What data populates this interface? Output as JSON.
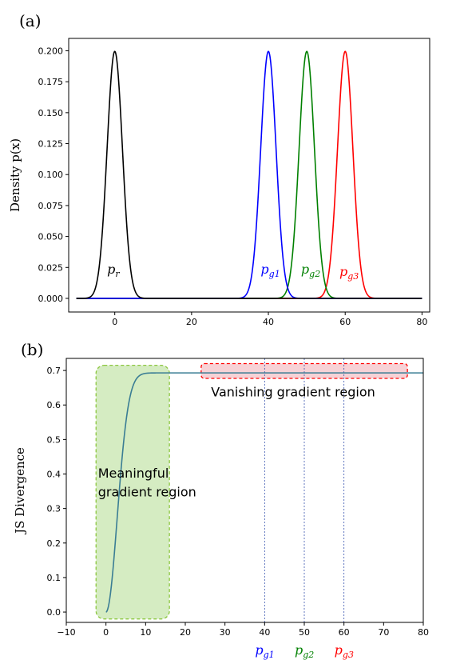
{
  "chart_data": [
    {
      "type": "line",
      "panel_label": "(a)",
      "ylabel": "Density p(x)",
      "xlim": [
        -12,
        82
      ],
      "ylim": [
        -0.011,
        0.21
      ],
      "xticks": [
        0,
        20,
        40,
        60,
        80
      ],
      "yticks": [
        0.0,
        0.025,
        0.05,
        0.075,
        0.1,
        0.125,
        0.15,
        0.175,
        0.2
      ],
      "ytick_labels": [
        "0.000",
        "0.025",
        "0.050",
        "0.075",
        "0.100",
        "0.125",
        "0.150",
        "0.175",
        "0.200"
      ],
      "grid": false,
      "x_range": [
        -10,
        80
      ],
      "sigma": 2,
      "series": [
        {
          "label": "p",
          "sub": "r",
          "color": "#000000",
          "mean": 0,
          "label_x": -2,
          "label_y": 0.02
        },
        {
          "label": "p",
          "sub": "g1",
          "color": "#0000ff",
          "mean": 40,
          "label_x": 38,
          "label_y": 0.02
        },
        {
          "label": "p",
          "sub": "g2",
          "color": "#008000",
          "mean": 50,
          "label_x": 48.5,
          "label_y": 0.02
        },
        {
          "label": "p",
          "sub": "g3",
          "color": "#ff0000",
          "mean": 60,
          "label_x": 58.5,
          "label_y": 0.018
        }
      ]
    },
    {
      "type": "line",
      "panel_label": "(b)",
      "ylabel": "JS Divergence",
      "xlim": [
        -10,
        80
      ],
      "ylim": [
        -0.03,
        0.735
      ],
      "xticks": [
        -10,
        0,
        10,
        20,
        30,
        40,
        50,
        60,
        70,
        80
      ],
      "xtick_labels": [
        "−10",
        "0",
        "10",
        "20",
        "30",
        "40",
        "50",
        "60",
        "70",
        "80"
      ],
      "yticks": [
        0.0,
        0.1,
        0.2,
        0.3,
        0.4,
        0.5,
        0.6,
        0.7
      ],
      "ytick_labels": [
        "0.0",
        "0.1",
        "0.2",
        "0.3",
        "0.4",
        "0.5",
        "0.6",
        "0.7"
      ],
      "grid": false,
      "curve_color": "#3a7d94",
      "curve_max": 0.693,
      "curve_x_range": [
        0,
        80
      ],
      "vlines": [
        {
          "x": 40,
          "label": "p",
          "sub": "g1",
          "color": "#0000ff"
        },
        {
          "x": 50,
          "label": "p",
          "sub": "g2",
          "color": "#008000"
        },
        {
          "x": 60,
          "label": "p",
          "sub": "g3",
          "color": "#ff0000"
        }
      ],
      "regions": [
        {
          "name": "meaningful",
          "x0": -2.5,
          "x1": 16,
          "y0": -0.02,
          "y1": 0.715,
          "fill": "#d5ecc2",
          "stroke": "#8cc63f",
          "text": [
            "Meaningful",
            "gradient region"
          ],
          "text_x": -2,
          "text_y": [
            0.39,
            0.335
          ]
        },
        {
          "name": "vanishing",
          "x0": 24,
          "x1": 76,
          "y0": 0.677,
          "y1": 0.72,
          "fill": "#f7d2d6",
          "stroke": "#ff0000",
          "text": [
            "Vanishing gradient region"
          ],
          "text_x": 26.5,
          "text_y": [
            0.625
          ]
        }
      ]
    }
  ]
}
